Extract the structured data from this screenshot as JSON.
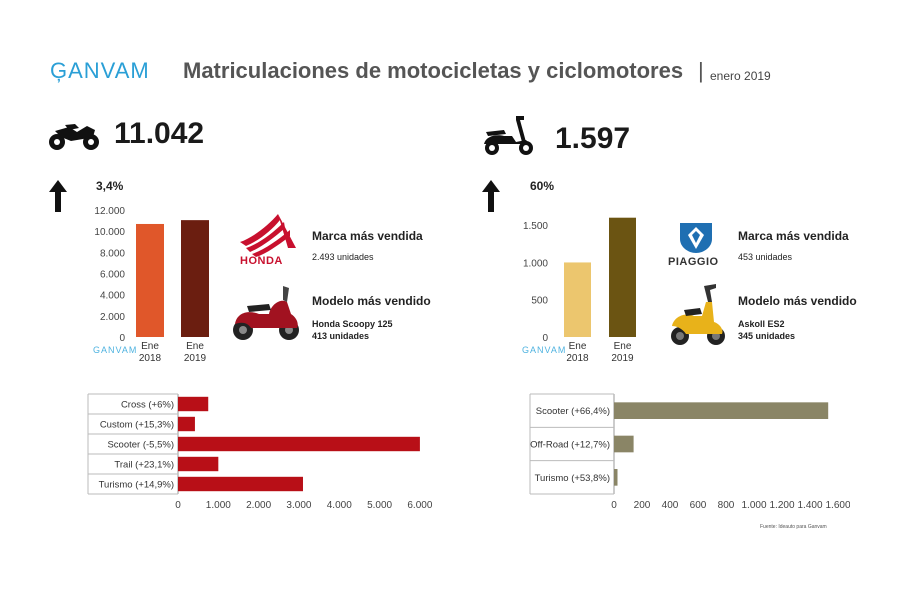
{
  "header": {
    "logo": "ĢANVAM",
    "title": "Matriculaciones de motocicletas y ciclomotores",
    "separator": "|",
    "date": "enero 2019"
  },
  "motos": {
    "total": "11.042",
    "growth": "3,4%",
    "brand_heading": "Marca más vendida",
    "brand_name": "HONDA",
    "brand_units": "2.493 unidades",
    "model_heading": "Modelo más vendido",
    "model_name": "Honda Scoopy 125",
    "model_units": "413 unidades",
    "watermark": "GANVAM"
  },
  "ciclos": {
    "total": "1.597",
    "growth": "60%",
    "brand_heading": "Marca más vendida",
    "brand_name": "PIAGGIO",
    "brand_units": "453 unidades",
    "model_heading": "Modelo más vendido",
    "model_name": "Askoll ES2",
    "model_units": "345 unidades",
    "watermark": "GANVAM"
  },
  "source_note": "Fuente: Ideauto para Ganvam",
  "colors": {
    "moto_2018": "#e0572a",
    "moto_2019": "#6b1e10",
    "ciclo_2018": "#ecc66e",
    "ciclo_2019": "#6b5412",
    "moto_seg": "#b80f17",
    "ciclo_seg": "#8a8566",
    "honda": "#c8102e",
    "piaggio": "#1f6fb2"
  },
  "chart_data": [
    {
      "id": "moto_annual",
      "type": "bar",
      "categories": [
        "Ene 2018",
        "Ene 2019"
      ],
      "cat_lines": [
        [
          "Ene",
          "2018"
        ],
        [
          "Ene",
          "2019"
        ]
      ],
      "values": [
        10680,
        11042
      ],
      "yticks": [
        0,
        2000,
        4000,
        6000,
        8000,
        10000,
        12000
      ],
      "ytick_labels": [
        "0",
        "2.000",
        "4.000",
        "6.000",
        "8.000",
        "10.000",
        "12.000"
      ],
      "ylim": [
        0,
        12000
      ]
    },
    {
      "id": "ciclo_annual",
      "type": "bar",
      "categories": [
        "Ene 2018",
        "Ene 2019"
      ],
      "cat_lines": [
        [
          "Ene",
          "2018"
        ],
        [
          "Ene",
          "2019"
        ]
      ],
      "values": [
        998,
        1597
      ],
      "yticks": [
        0,
        500,
        1000,
        1500
      ],
      "ytick_labels": [
        "0",
        "500",
        "1.000",
        "1.500"
      ],
      "ylim": [
        0,
        1700
      ]
    },
    {
      "id": "moto_segments",
      "type": "bar",
      "orientation": "horizontal",
      "categories": [
        "Cross (+6%)",
        "Custom (+15,3%)",
        "Scooter (-5,5%)",
        "Trail (+23,1%)",
        "Turismo (+14,9%)"
      ],
      "values": [
        750,
        420,
        6000,
        1000,
        3100
      ],
      "xticks": [
        0,
        1000,
        2000,
        3000,
        4000,
        5000,
        6000
      ],
      "xtick_labels": [
        "0",
        "1.000",
        "2.000",
        "3.000",
        "4.000",
        "5.000",
        "6.000"
      ],
      "xlim": [
        0,
        6300
      ]
    },
    {
      "id": "ciclo_segments",
      "type": "bar",
      "orientation": "horizontal",
      "categories": [
        "Scooter (+66,4%)",
        "Off-Road (+12,7%)",
        "Turismo (+53,8%)"
      ],
      "values": [
        1530,
        140,
        25
      ],
      "xticks": [
        0,
        200,
        400,
        600,
        800,
        1000,
        1200,
        1400,
        1600
      ],
      "xtick_labels": [
        "0",
        "200",
        "400",
        "600",
        "800",
        "1.000",
        "1.200",
        "1.400",
        "1.600"
      ],
      "xlim": [
        0,
        1600
      ]
    }
  ]
}
